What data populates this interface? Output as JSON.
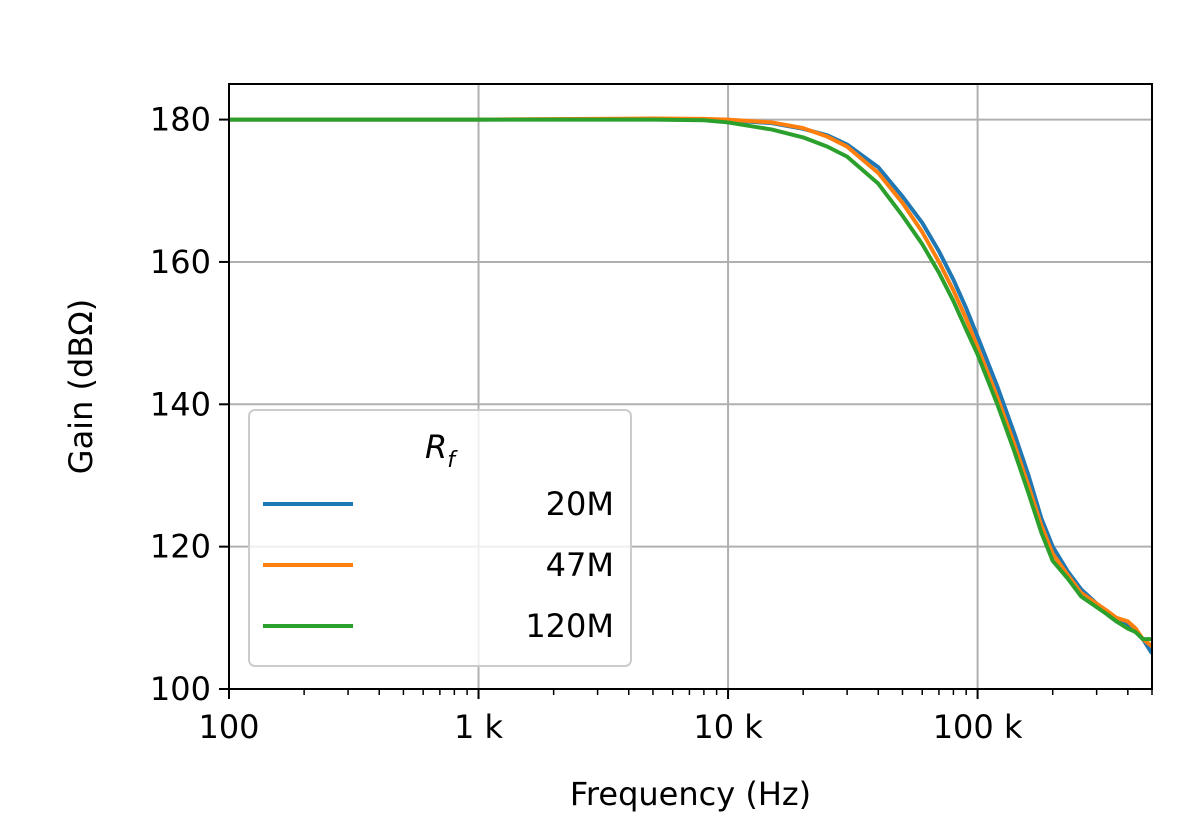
{
  "chart_data": {
    "type": "line",
    "xscale": "log",
    "xlabel": "Frequency (Hz)",
    "ylabel": "Gain (dBΩ)",
    "xlim": [
      100,
      500000
    ],
    "ylim": [
      100,
      185
    ],
    "x_ticks": [
      {
        "value": 100,
        "label": "100"
      },
      {
        "value": 1000,
        "label": "1 k"
      },
      {
        "value": 10000,
        "label": "10 k"
      },
      {
        "value": 100000,
        "label": "100 k"
      }
    ],
    "y_ticks": [
      100,
      120,
      140,
      160,
      180
    ],
    "grid": true,
    "legend": {
      "title": "R",
      "title_subscript": "f",
      "placement": "lower-left"
    },
    "series": [
      {
        "name": "20M",
        "color": "#1f77b4",
        "points": [
          [
            100,
            180.0
          ],
          [
            1000,
            180.0
          ],
          [
            5000,
            180.05
          ],
          [
            8000,
            180.0
          ],
          [
            10000,
            179.9
          ],
          [
            15000,
            179.5
          ],
          [
            20000,
            178.7
          ],
          [
            25000,
            177.8
          ],
          [
            30000,
            176.5
          ],
          [
            40000,
            173.3
          ],
          [
            50000,
            169.2
          ],
          [
            60000,
            165.5
          ],
          [
            70000,
            161.5
          ],
          [
            80000,
            157.5
          ],
          [
            90000,
            153.5
          ],
          [
            100000,
            149.5
          ],
          [
            120000,
            142.5
          ],
          [
            140000,
            136.0
          ],
          [
            160000,
            130.0
          ],
          [
            180000,
            124.0
          ],
          [
            200000,
            120.0
          ],
          [
            230000,
            116.5
          ],
          [
            260000,
            114.0
          ],
          [
            300000,
            112.0
          ],
          [
            330000,
            110.5
          ],
          [
            360000,
            109.5
          ],
          [
            400000,
            109.0
          ],
          [
            430000,
            108.0
          ],
          [
            460000,
            107.0
          ],
          [
            500000,
            105.0
          ]
        ]
      },
      {
        "name": "47M",
        "color": "#ff7f0e",
        "points": [
          [
            100,
            180.0
          ],
          [
            1000,
            180.0
          ],
          [
            5000,
            180.15
          ],
          [
            8000,
            180.1
          ],
          [
            10000,
            180.0
          ],
          [
            15000,
            179.6
          ],
          [
            20000,
            178.8
          ],
          [
            25000,
            177.6
          ],
          [
            30000,
            176.2
          ],
          [
            40000,
            172.5
          ],
          [
            50000,
            168.3
          ],
          [
            60000,
            164.2
          ],
          [
            70000,
            160.0
          ],
          [
            80000,
            156.0
          ],
          [
            90000,
            152.0
          ],
          [
            100000,
            148.0
          ],
          [
            120000,
            141.0
          ],
          [
            140000,
            134.5
          ],
          [
            160000,
            128.5
          ],
          [
            180000,
            123.0
          ],
          [
            200000,
            119.0
          ],
          [
            230000,
            116.0
          ],
          [
            260000,
            113.5
          ],
          [
            300000,
            112.0
          ],
          [
            330000,
            111.0
          ],
          [
            360000,
            110.0
          ],
          [
            400000,
            109.5
          ],
          [
            430000,
            108.5
          ],
          [
            460000,
            107.0
          ],
          [
            500000,
            106.0
          ]
        ]
      },
      {
        "name": "120M",
        "color": "#2ca02c",
        "points": [
          [
            100,
            180.0
          ],
          [
            1000,
            180.0
          ],
          [
            5000,
            180.0
          ],
          [
            8000,
            179.9
          ],
          [
            10000,
            179.6
          ],
          [
            15000,
            178.6
          ],
          [
            20000,
            177.5
          ],
          [
            25000,
            176.2
          ],
          [
            30000,
            174.8
          ],
          [
            40000,
            171.0
          ],
          [
            50000,
            166.5
          ],
          [
            60000,
            162.5
          ],
          [
            70000,
            158.5
          ],
          [
            80000,
            154.5
          ],
          [
            90000,
            150.5
          ],
          [
            100000,
            147.0
          ],
          [
            120000,
            140.0
          ],
          [
            140000,
            133.5
          ],
          [
            160000,
            127.5
          ],
          [
            180000,
            122.0
          ],
          [
            200000,
            118.0
          ],
          [
            230000,
            115.5
          ],
          [
            260000,
            113.0
          ],
          [
            300000,
            111.5
          ],
          [
            330000,
            110.5
          ],
          [
            360000,
            109.5
          ],
          [
            400000,
            108.5
          ],
          [
            430000,
            108.0
          ],
          [
            460000,
            107.0
          ],
          [
            500000,
            107.0
          ]
        ]
      }
    ]
  }
}
